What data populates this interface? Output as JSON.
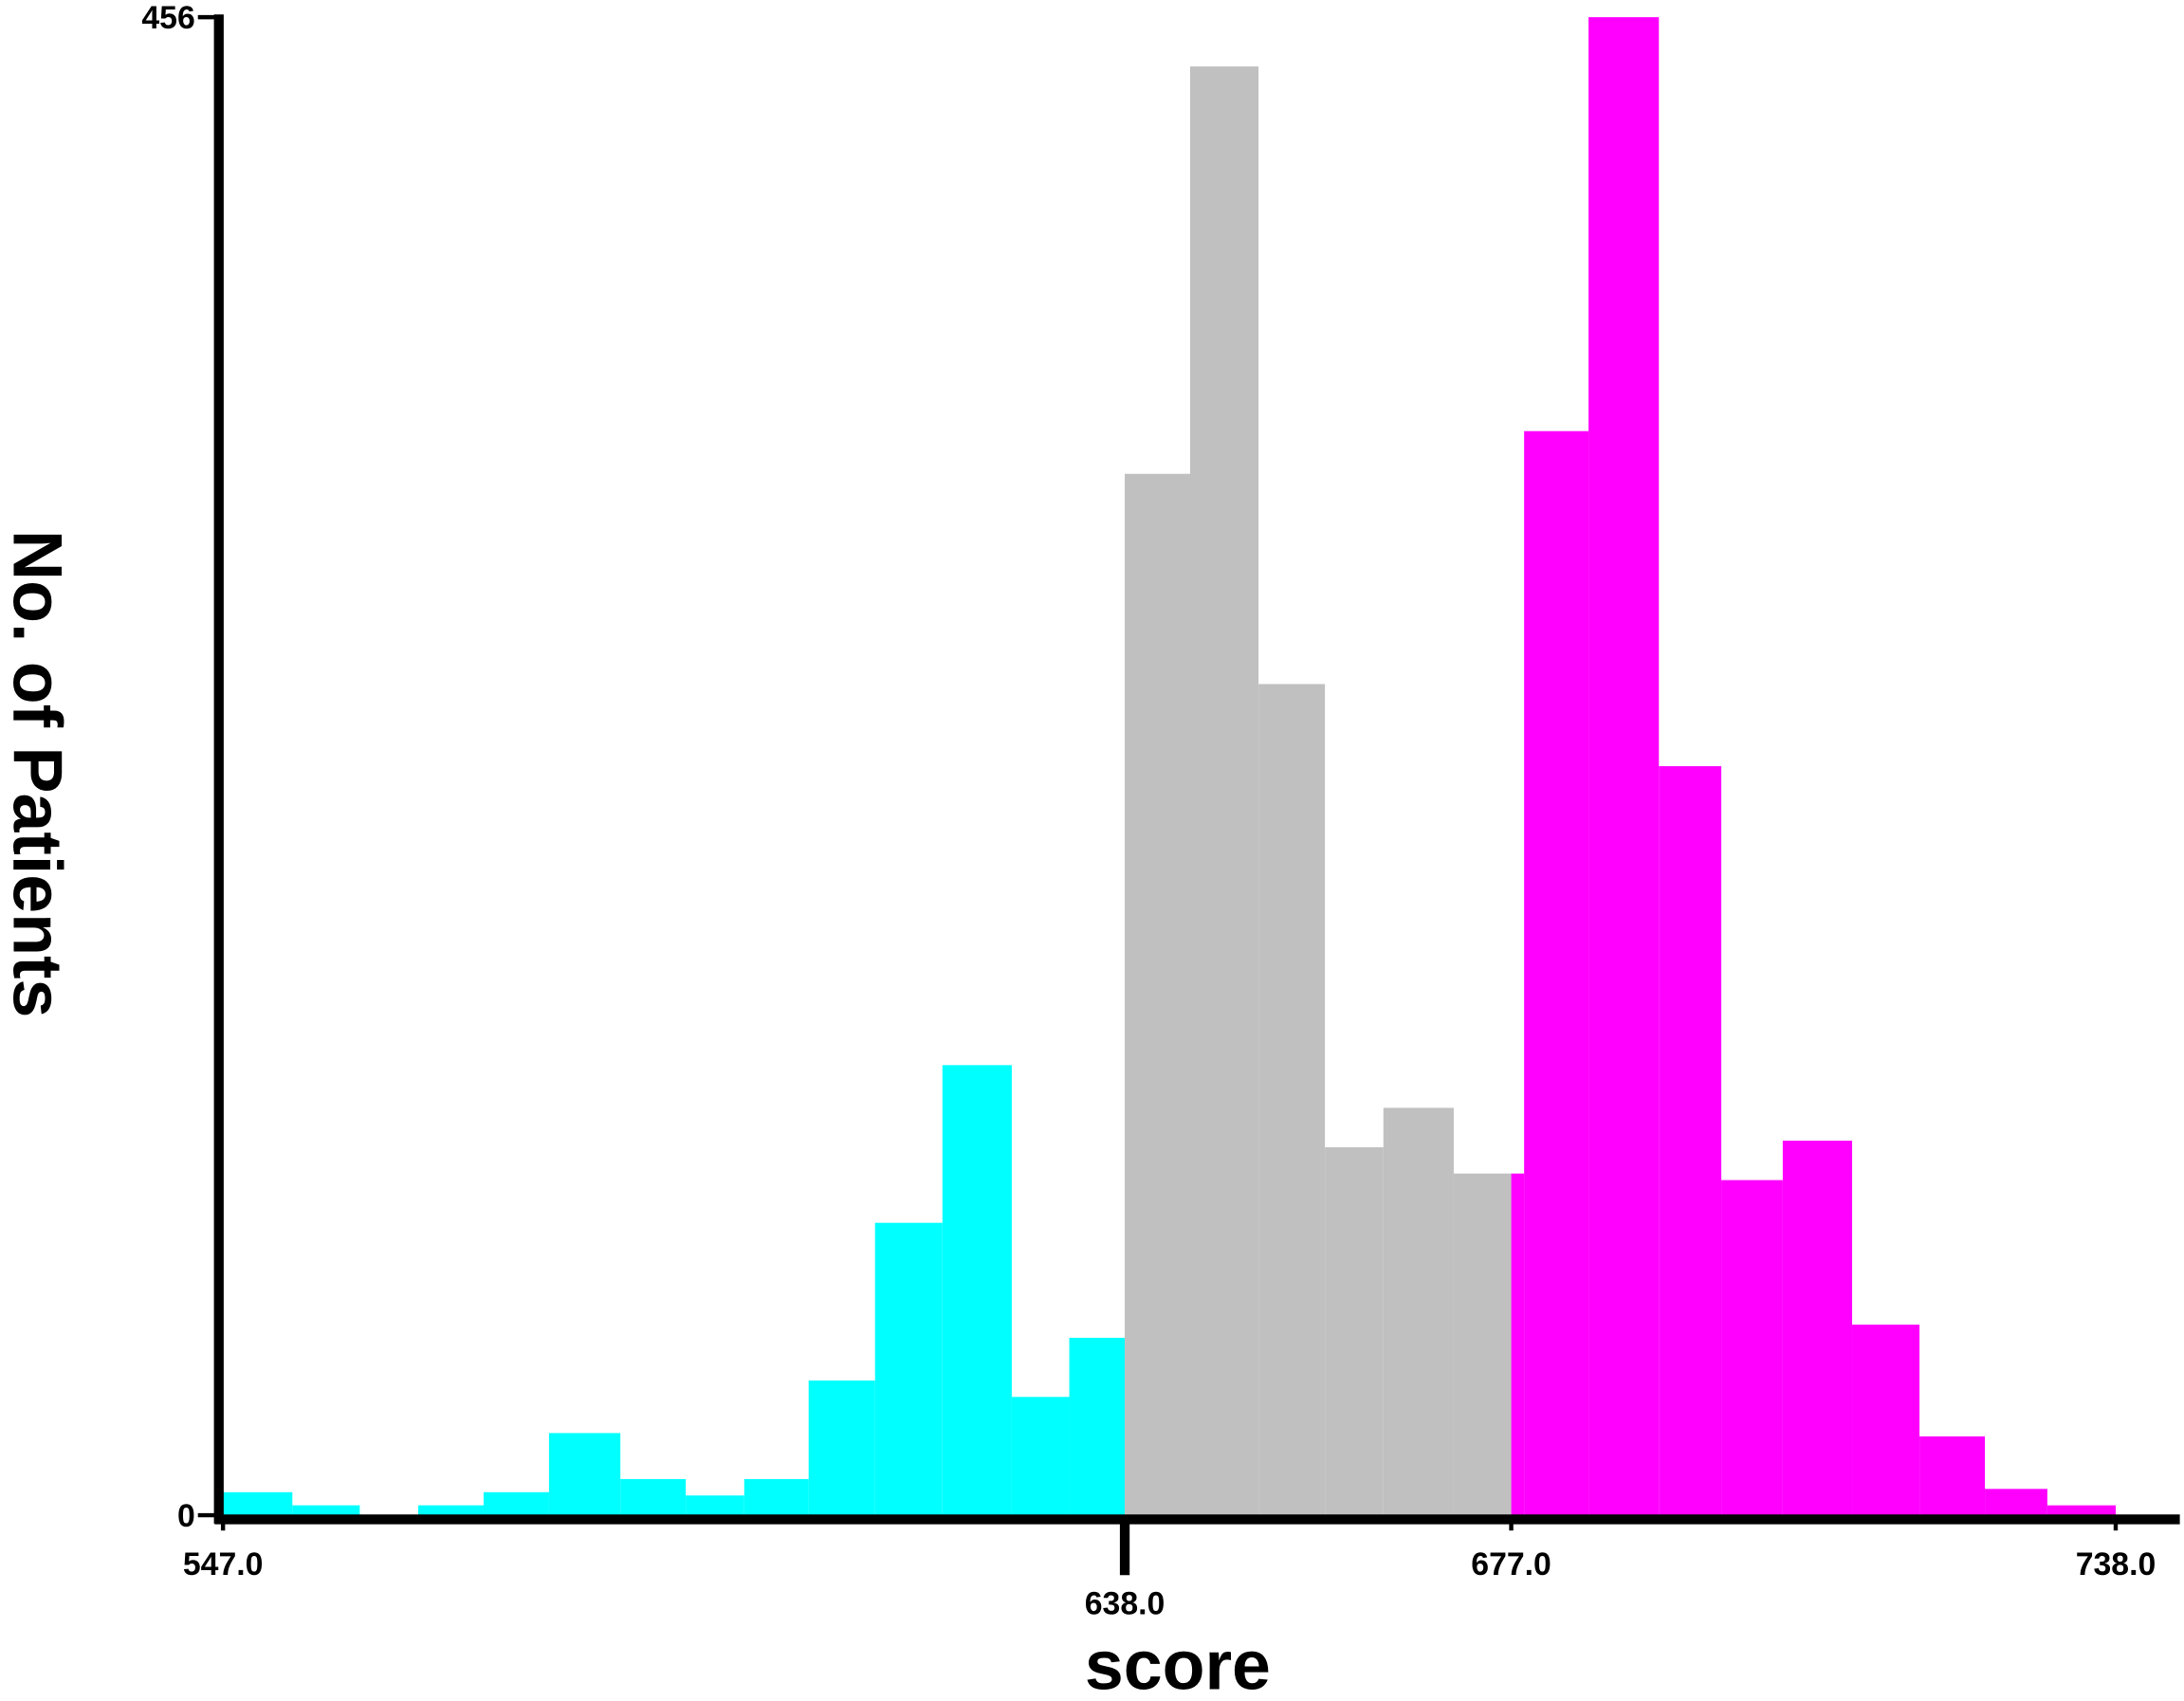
{
  "chart_data": {
    "type": "histogram",
    "xlabel": "score",
    "ylabel": "No. of Patients",
    "xlim": [
      547,
      738
    ],
    "ylim": [
      0,
      456
    ],
    "xticks": [
      {
        "value": 547,
        "label": "547.0"
      },
      {
        "value": 638,
        "label": "638.0"
      },
      {
        "value": 677,
        "label": "677.0"
      },
      {
        "value": 738,
        "label": "738.0"
      }
    ],
    "yticks": [
      0,
      456
    ],
    "series": [
      {
        "color": "#00ffff",
        "bins": [
          547,
          554.0,
          560.8,
          566.7,
          573.3,
          579.9,
          587.1,
          593.7,
          599.6,
          606.1,
          612.8,
          619.6,
          626.6,
          632.4,
          638
        ],
        "values": [
          7,
          3,
          0,
          3,
          7,
          25,
          11,
          6,
          11,
          41,
          89,
          137,
          36,
          54
        ]
      },
      {
        "color": "#c0c0c0",
        "bins": [
          638,
          644.6,
          651.5,
          658.2,
          664.1,
          671.2,
          677
        ],
        "values": [
          317,
          441,
          253,
          112,
          124,
          104
        ]
      },
      {
        "color": "#ff00ff",
        "bins": [
          677,
          678.3,
          684.8,
          691.9,
          698.2,
          704.4,
          711.4,
          718.2,
          724.8,
          731.1,
          738
        ],
        "values": [
          104,
          330,
          456,
          228,
          102,
          114,
          58,
          24,
          8,
          3
        ]
      }
    ]
  }
}
